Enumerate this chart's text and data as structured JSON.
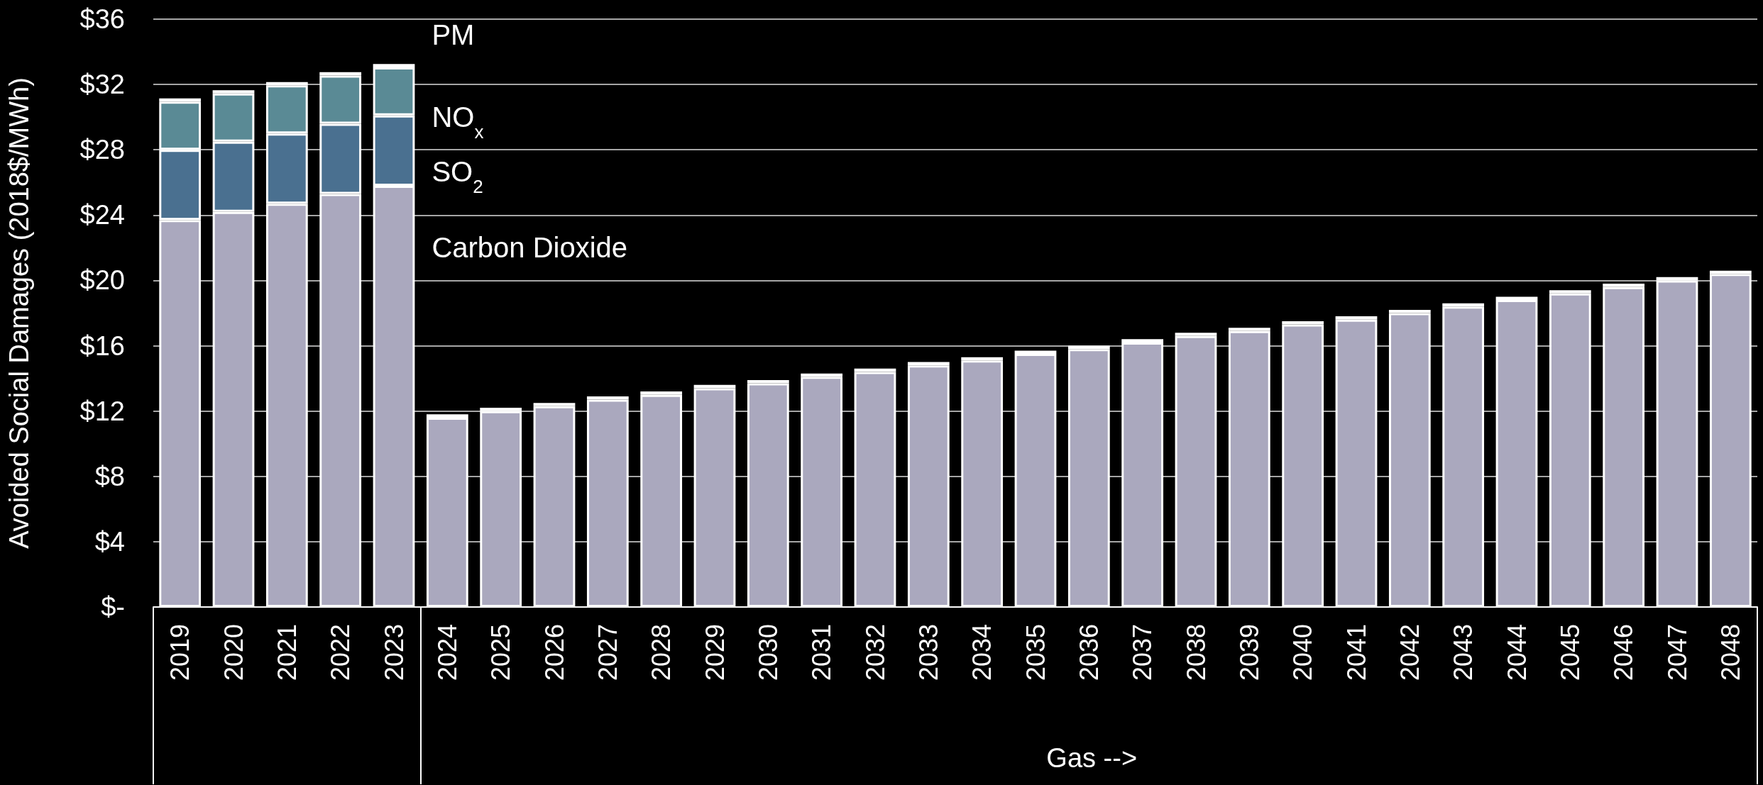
{
  "chart_data": {
    "type": "bar",
    "stacked": true,
    "ylabel": "Avoided Social Damages (2018$/MWh)",
    "categories": [
      "2019",
      "2020",
      "2021",
      "2022",
      "2023",
      "2024",
      "2025",
      "2026",
      "2027",
      "2028",
      "2029",
      "2030",
      "2031",
      "2032",
      "2033",
      "2034",
      "2035",
      "2036",
      "2037",
      "2038",
      "2039",
      "2040",
      "2041",
      "2042",
      "2043",
      "2044",
      "2045",
      "2046",
      "2047",
      "2048"
    ],
    "series": [
      {
        "name": "Carbon Dioxide",
        "color": "#aaa8be",
        "values": [
          23.7,
          24.2,
          24.7,
          25.3,
          25.8,
          11.6,
          12.0,
          12.3,
          12.7,
          13.0,
          13.4,
          13.7,
          14.1,
          14.4,
          14.8,
          15.1,
          15.5,
          15.8,
          16.2,
          16.6,
          16.9,
          17.3,
          17.6,
          18.0,
          18.4,
          18.8,
          19.2,
          19.6,
          20.0,
          20.4
        ]
      },
      {
        "name": "SO$_{2}$",
        "color": "#4a7090",
        "values": [
          4.3,
          4.3,
          4.3,
          4.3,
          4.3,
          null,
          null,
          null,
          null,
          null,
          null,
          null,
          null,
          null,
          null,
          null,
          null,
          null,
          null,
          null,
          null,
          null,
          null,
          null,
          null,
          null,
          null,
          null,
          null,
          null
        ]
      },
      {
        "name": "NO$_{x}$",
        "color": "#5a8a95",
        "values": [
          2.95,
          2.95,
          2.95,
          2.95,
          2.95,
          0.2,
          0.2,
          0.2,
          0.2,
          0.2,
          0.2,
          0.2,
          0.2,
          0.2,
          0.2,
          0.2,
          0.2,
          0.2,
          0.2,
          0.2,
          0.2,
          0.2,
          0.2,
          0.2,
          0.2,
          0.2,
          0.2,
          0.2,
          0.2,
          0.2
        ]
      },
      {
        "name": "PM",
        "color": "#7a8e8e",
        "values": [
          0.2,
          0.2,
          0.2,
          0.2,
          0.2,
          null,
          null,
          null,
          null,
          null,
          null,
          null,
          null,
          null,
          null,
          null,
          null,
          null,
          null,
          null,
          null,
          null,
          null,
          null,
          null,
          null,
          null,
          null,
          null,
          null
        ]
      }
    ],
    "ylim": [
      0,
      36
    ],
    "yticks": [
      {
        "value": 0,
        "label": "$-"
      },
      {
        "value": 4,
        "label": "$4"
      },
      {
        "value": 8,
        "label": "$8"
      },
      {
        "value": 12,
        "label": "$12"
      },
      {
        "value": 16,
        "label": "$16"
      },
      {
        "value": 20,
        "label": "$20"
      },
      {
        "value": 24,
        "label": "$24"
      },
      {
        "value": 28,
        "label": "$28"
      },
      {
        "value": 32,
        "label": "$32"
      },
      {
        "value": 36,
        "label": "$36"
      }
    ],
    "grid": "y",
    "legend": false,
    "annotations": [
      "Gas -->"
    ]
  }
}
